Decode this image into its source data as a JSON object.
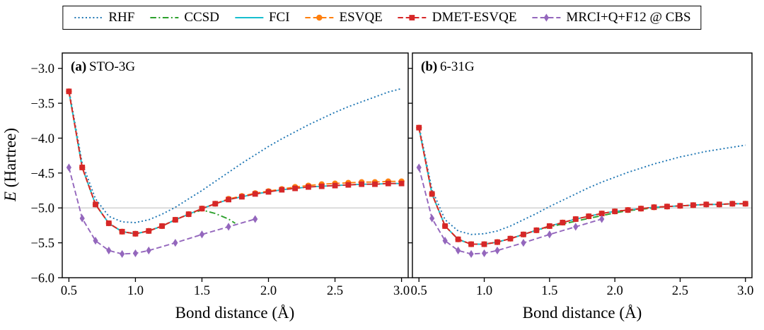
{
  "chart_data": {
    "type": "line",
    "xlabel": "Bond distance (Å)",
    "ylabel": "E (Hartree)",
    "ylabel_var": "E",
    "ylabel_rest": " (Hartree)",
    "axes": {
      "xlim": [
        0.45,
        3.05
      ],
      "ylim": [
        -6.0,
        -2.78
      ],
      "xticks": [
        0.5,
        1.0,
        1.5,
        2.0,
        2.5,
        3.0
      ],
      "yticks": [
        -3.0,
        -3.5,
        -4.0,
        -4.5,
        -5.0,
        -5.5,
        -6.0
      ],
      "grid": false,
      "refline_y": -5.0,
      "refline_color": "#c9c9c9"
    },
    "legend": {
      "position": "top-center",
      "items": [
        {
          "id": "rhf",
          "label": "RHF",
          "color": "#1f77b4",
          "dash": "dotted",
          "marker": "none"
        },
        {
          "id": "ccsd",
          "label": "CCSD",
          "color": "#2ca02c",
          "dash": "dashdot",
          "marker": "none"
        },
        {
          "id": "fci",
          "label": "FCI",
          "color": "#17becf",
          "dash": "solid",
          "marker": "none"
        },
        {
          "id": "esvqe",
          "label": "ESVQE",
          "color": "#ff7f0e",
          "dash": "dashed",
          "marker": "circle"
        },
        {
          "id": "dmet-esvqe",
          "label": "DMET-ESVQE",
          "color": "#d62728",
          "dash": "dashed",
          "marker": "square"
        },
        {
          "id": "mrci",
          "label": "MRCI+Q+F12 @ CBS",
          "color": "#9467bd",
          "dash": "dashed",
          "marker": "diamond"
        }
      ]
    },
    "panels": [
      {
        "tag": "(a)",
        "name": "STO-3G",
        "series": [
          {
            "id": "rhf",
            "x": [
              0.5,
              0.6,
              0.7,
              0.8,
              0.9,
              1.0,
              1.1,
              1.2,
              1.3,
              1.4,
              1.5,
              1.6,
              1.7,
              1.8,
              1.9,
              2.0,
              2.1,
              2.2,
              2.3,
              2.4,
              2.5,
              2.6,
              2.7,
              2.8,
              2.9,
              3.0
            ],
            "y": [
              -3.3,
              -4.36,
              -4.87,
              -5.12,
              -5.2,
              -5.21,
              -5.17,
              -5.09,
              -4.99,
              -4.87,
              -4.75,
              -4.62,
              -4.49,
              -4.36,
              -4.24,
              -4.12,
              -4.01,
              -3.91,
              -3.81,
              -3.72,
              -3.63,
              -3.55,
              -3.48,
              -3.41,
              -3.34,
              -3.29
            ]
          },
          {
            "id": "ccsd",
            "x": [
              0.5,
              0.6,
              0.7,
              0.8,
              0.9,
              1.0,
              1.1,
              1.2,
              1.3,
              1.4,
              1.5,
              1.6,
              1.7,
              1.75
            ],
            "y": [
              -3.33,
              -4.42,
              -4.95,
              -5.22,
              -5.34,
              -5.37,
              -5.33,
              -5.26,
              -5.17,
              -5.09,
              -5.03,
              -5.08,
              -5.16,
              -5.22
            ]
          },
          {
            "id": "fci",
            "x": [
              0.5,
              0.6,
              0.7,
              0.8,
              0.9,
              1.0,
              1.1,
              1.2,
              1.3,
              1.4,
              1.5,
              1.6,
              1.7,
              1.8,
              1.9,
              2.0,
              2.1,
              2.2,
              2.3,
              2.4,
              2.5,
              2.6,
              2.7,
              2.8,
              2.9,
              3.0
            ],
            "y": [
              -3.33,
              -4.42,
              -4.95,
              -5.22,
              -5.34,
              -5.37,
              -5.33,
              -5.26,
              -5.17,
              -5.09,
              -5.01,
              -4.94,
              -4.88,
              -4.84,
              -4.8,
              -4.77,
              -4.74,
              -4.72,
              -4.7,
              -4.69,
              -4.68,
              -4.67,
              -4.66,
              -4.66,
              -4.65,
              -4.65
            ]
          },
          {
            "id": "esvqe",
            "x": [
              0.5,
              0.6,
              0.7,
              0.8,
              0.9,
              1.0,
              1.1,
              1.2,
              1.3,
              1.4,
              1.5,
              1.6,
              1.7,
              1.8,
              1.9,
              2.0,
              2.1,
              2.2,
              2.3,
              2.4,
              2.5,
              2.6,
              2.7,
              2.8,
              2.9,
              3.0
            ],
            "y": [
              -3.33,
              -4.42,
              -4.95,
              -5.22,
              -5.34,
              -5.37,
              -5.33,
              -5.26,
              -5.17,
              -5.09,
              -5.01,
              -4.94,
              -4.87,
              -4.83,
              -4.79,
              -4.76,
              -4.73,
              -4.7,
              -4.68,
              -4.66,
              -4.65,
              -4.64,
              -4.63,
              -4.63,
              -4.62,
              -4.62
            ]
          },
          {
            "id": "dmet-esvqe",
            "x": [
              0.5,
              0.6,
              0.7,
              0.8,
              0.9,
              1.0,
              1.1,
              1.2,
              1.3,
              1.4,
              1.5,
              1.6,
              1.7,
              1.8,
              1.9,
              2.0,
              2.1,
              2.2,
              2.3,
              2.4,
              2.5,
              2.6,
              2.7,
              2.8,
              2.9,
              3.0
            ],
            "y": [
              -3.33,
              -4.42,
              -4.95,
              -5.22,
              -5.34,
              -5.37,
              -5.33,
              -5.26,
              -5.17,
              -5.09,
              -5.01,
              -4.94,
              -4.88,
              -4.84,
              -4.8,
              -4.77,
              -4.74,
              -4.72,
              -4.7,
              -4.69,
              -4.68,
              -4.67,
              -4.66,
              -4.66,
              -4.65,
              -4.65
            ]
          },
          {
            "id": "mrci",
            "x": [
              0.5,
              0.6,
              0.7,
              0.8,
              0.9,
              1.0,
              1.1,
              1.3,
              1.5,
              1.7,
              1.9
            ],
            "y": [
              -4.42,
              -5.15,
              -5.47,
              -5.61,
              -5.66,
              -5.65,
              -5.61,
              -5.5,
              -5.38,
              -5.27,
              -5.16
            ]
          }
        ]
      },
      {
        "tag": "(b)",
        "name": "6-31G",
        "series": [
          {
            "id": "rhf",
            "x": [
              0.5,
              0.6,
              0.7,
              0.8,
              0.9,
              1.0,
              1.1,
              1.2,
              1.3,
              1.4,
              1.5,
              1.6,
              1.7,
              1.8,
              1.9,
              2.0,
              2.1,
              2.2,
              2.3,
              2.4,
              2.5,
              2.6,
              2.7,
              2.8,
              2.9,
              3.0
            ],
            "y": [
              -3.82,
              -4.74,
              -5.17,
              -5.33,
              -5.38,
              -5.37,
              -5.33,
              -5.26,
              -5.17,
              -5.08,
              -4.98,
              -4.89,
              -4.8,
              -4.71,
              -4.63,
              -4.56,
              -4.49,
              -4.43,
              -4.37,
              -4.32,
              -4.27,
              -4.23,
              -4.19,
              -4.16,
              -4.13,
              -4.1
            ]
          },
          {
            "id": "ccsd",
            "x": [
              0.5,
              0.6,
              0.7,
              0.8,
              0.9,
              1.0,
              1.1,
              1.2,
              1.3,
              1.4,
              1.5,
              1.6,
              1.7,
              1.8,
              1.9,
              2.0,
              2.1,
              2.2,
              2.3,
              2.4,
              2.5,
              2.6,
              2.7,
              2.8,
              2.9,
              3.0
            ],
            "y": [
              -3.85,
              -4.8,
              -5.26,
              -5.45,
              -5.52,
              -5.52,
              -5.49,
              -5.44,
              -5.38,
              -5.32,
              -5.27,
              -5.23,
              -5.19,
              -5.15,
              -5.11,
              -5.07,
              -5.04,
              -5.02,
              -5.0,
              -4.98,
              -4.97,
              -4.96,
              -4.95,
              -4.95,
              -4.94,
              -4.94
            ]
          },
          {
            "id": "fci",
            "x": [
              0.5,
              0.6,
              0.7,
              0.8,
              0.9,
              1.0,
              1.1,
              1.2,
              1.3,
              1.4,
              1.5,
              1.6,
              1.7,
              1.8,
              1.9,
              2.0,
              2.1,
              2.2,
              2.3,
              2.4,
              2.5,
              2.6,
              2.7,
              2.8,
              2.9,
              3.0
            ],
            "y": [
              -3.85,
              -4.8,
              -5.26,
              -5.45,
              -5.52,
              -5.52,
              -5.49,
              -5.44,
              -5.38,
              -5.32,
              -5.26,
              -5.21,
              -5.16,
              -5.12,
              -5.08,
              -5.05,
              -5.03,
              -5.01,
              -4.99,
              -4.98,
              -4.97,
              -4.96,
              -4.95,
              -4.95,
              -4.94,
              -4.94
            ]
          },
          {
            "id": "esvqe",
            "x": [
              0.5,
              0.6,
              0.7,
              0.8,
              0.9,
              1.0,
              1.1,
              1.2,
              1.3,
              1.4,
              1.5,
              1.6,
              1.7,
              1.8,
              1.9,
              2.0,
              2.1,
              2.2,
              2.3,
              2.4,
              2.5,
              2.6,
              2.7,
              2.8,
              2.9,
              3.0
            ],
            "y": [
              -3.85,
              -4.8,
              -5.26,
              -5.45,
              -5.52,
              -5.52,
              -5.49,
              -5.44,
              -5.38,
              -5.32,
              -5.26,
              -5.21,
              -5.16,
              -5.12,
              -5.08,
              -5.05,
              -5.03,
              -5.01,
              -4.99,
              -4.98,
              -4.97,
              -4.96,
              -4.95,
              -4.95,
              -4.94,
              -4.94
            ]
          },
          {
            "id": "dmet-esvqe",
            "x": [
              0.5,
              0.6,
              0.7,
              0.8,
              0.9,
              1.0,
              1.1,
              1.2,
              1.3,
              1.4,
              1.5,
              1.6,
              1.7,
              1.8,
              1.9,
              2.0,
              2.1,
              2.2,
              2.3,
              2.4,
              2.5,
              2.6,
              2.7,
              2.8,
              2.9,
              3.0
            ],
            "y": [
              -3.85,
              -4.8,
              -5.26,
              -5.45,
              -5.52,
              -5.52,
              -5.49,
              -5.44,
              -5.38,
              -5.32,
              -5.26,
              -5.21,
              -5.16,
              -5.12,
              -5.08,
              -5.05,
              -5.03,
              -5.01,
              -4.99,
              -4.98,
              -4.97,
              -4.96,
              -4.95,
              -4.95,
              -4.94,
              -4.94
            ]
          },
          {
            "id": "mrci",
            "x": [
              0.5,
              0.6,
              0.7,
              0.8,
              0.9,
              1.0,
              1.1,
              1.3,
              1.5,
              1.7,
              1.9
            ],
            "y": [
              -4.42,
              -5.15,
              -5.47,
              -5.61,
              -5.66,
              -5.65,
              -5.61,
              -5.5,
              -5.38,
              -5.27,
              -5.16
            ]
          }
        ]
      }
    ]
  }
}
